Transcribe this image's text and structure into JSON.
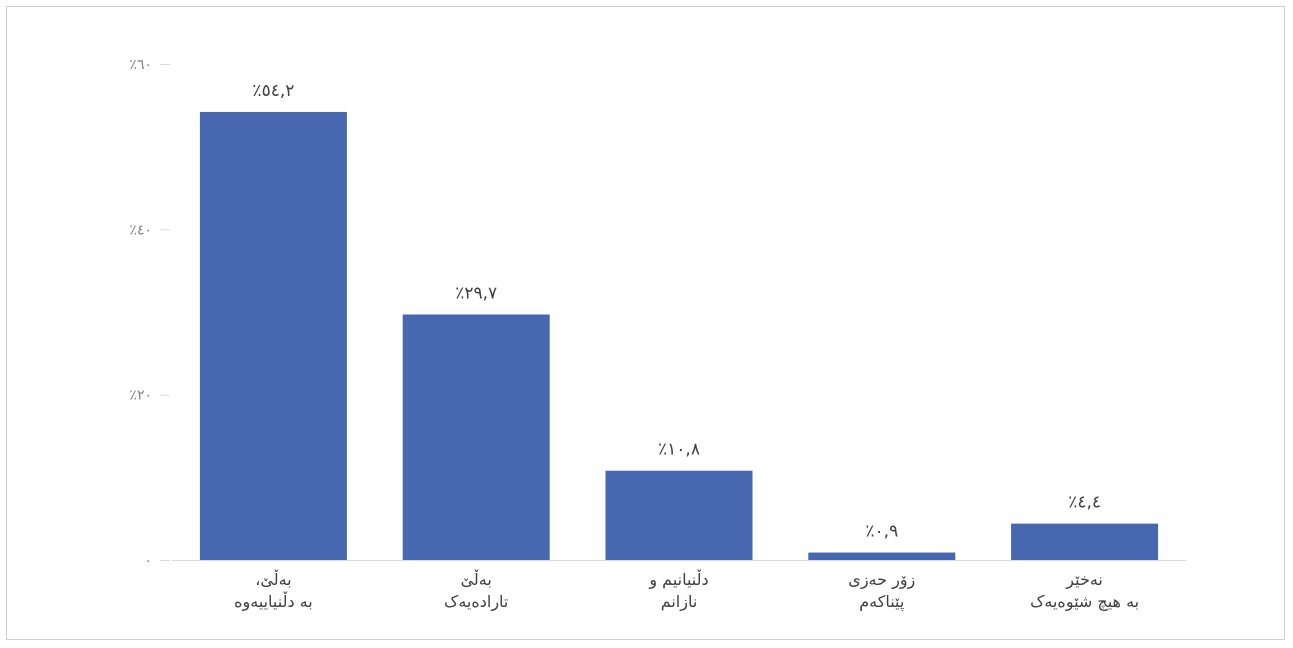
{
  "chart_data": {
    "type": "bar",
    "categories": [
      [
        "بەڵێ،",
        "بە دڵنیاییەوە"
      ],
      [
        "بەڵێ",
        "تارادەیەک"
      ],
      [
        "دڵنیانیم و",
        "نازانم"
      ],
      [
        "زۆر حەزی",
        "پێناکەم"
      ],
      [
        "نەخێر",
        "بە هیچ شێوەیەک"
      ]
    ],
    "values": [
      54.2,
      29.7,
      10.8,
      0.9,
      4.4
    ],
    "value_labels": [
      "٪٥٤,٢",
      "٪٢٩,٧",
      "٪١٠,٨",
      "٪٠,٩",
      "٪٤,٤"
    ],
    "yticks": [
      0,
      20,
      40,
      60
    ],
    "ytick_labels": [
      "٠",
      "٪٢٠",
      "٪٤٠",
      "٪٦٠"
    ],
    "ylim": [
      0,
      60
    ],
    "title": "",
    "xlabel": "",
    "ylabel": "",
    "bar_color": "#4767B0",
    "grid": false,
    "legend": "none"
  }
}
